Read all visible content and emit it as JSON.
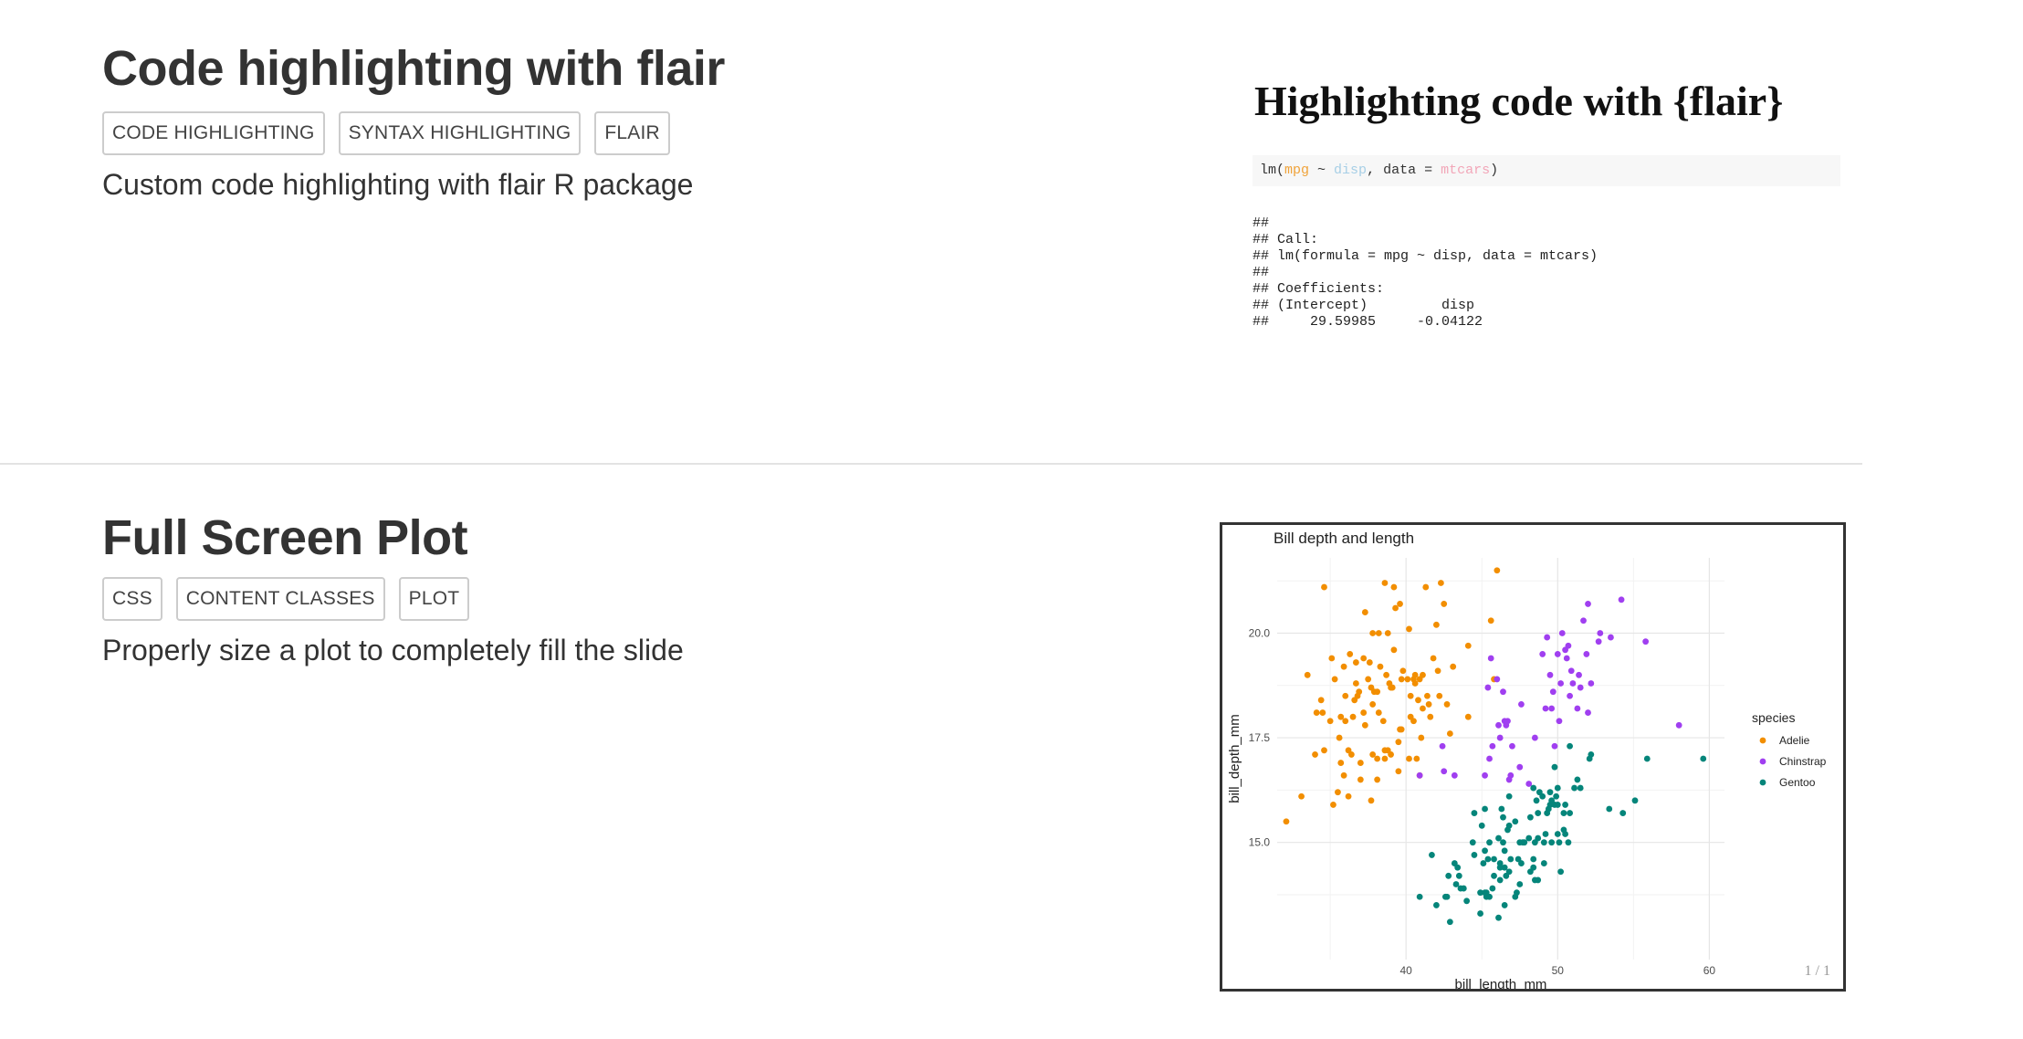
{
  "entries": [
    {
      "title": "Code highlighting with flair",
      "tags": [
        "CODE HIGHLIGHTING",
        "SYNTAX HIGHLIGHTING",
        "FLAIR"
      ],
      "description": "Custom code highlighting with flair R package",
      "preview": {
        "title": "Highlighting code with {flair}",
        "code": {
          "prefix": "lm(",
          "tok1": "mpg",
          "sep1": " ~ ",
          "tok2": "disp",
          "sep2": ", data = ",
          "tok3": "mtcars",
          "suffix": ")"
        },
        "output_lines": [
          "##",
          "## Call:",
          "## lm(formula = mpg ~ disp, data = mtcars)",
          "##",
          "## Coefficients:",
          "## (Intercept)         disp",
          "##     29.59985     -0.04122"
        ]
      }
    },
    {
      "title": "Full Screen Plot",
      "tags": [
        "CSS",
        "CONTENT CLASSES",
        "PLOT"
      ],
      "description": "Properly size a plot to completely fill the slide",
      "preview": {
        "page_number": "1 / 1"
      }
    }
  ],
  "chart_data": {
    "type": "scatter",
    "title": "Bill depth and length",
    "xlabel": "bill_length_mm",
    "ylabel": "bill_depth_mm",
    "xlim": [
      31.5,
      61
    ],
    "ylim": [
      12.2,
      21.8
    ],
    "xticks": [
      40,
      50,
      60
    ],
    "yticks": [
      15.0,
      17.5,
      20.0
    ],
    "grid": true,
    "legend": {
      "title": "species",
      "position": "right"
    },
    "series": [
      {
        "name": "Adelie",
        "color": "#f28e00",
        "points": [
          [
            32.1,
            15.5
          ],
          [
            33.1,
            16.1
          ],
          [
            33.5,
            19.0
          ],
          [
            34.0,
            17.1
          ],
          [
            34.1,
            18.1
          ],
          [
            34.4,
            18.4
          ],
          [
            34.5,
            18.1
          ],
          [
            34.6,
            21.1
          ],
          [
            34.6,
            17.2
          ],
          [
            35.0,
            17.9
          ],
          [
            35.1,
            19.4
          ],
          [
            35.2,
            15.9
          ],
          [
            35.3,
            18.9
          ],
          [
            35.5,
            16.2
          ],
          [
            35.6,
            17.5
          ],
          [
            35.7,
            16.9
          ],
          [
            35.7,
            18.0
          ],
          [
            35.9,
            19.2
          ],
          [
            35.9,
            16.6
          ],
          [
            36.0,
            17.9
          ],
          [
            36.0,
            18.5
          ],
          [
            36.2,
            17.2
          ],
          [
            36.2,
            16.1
          ],
          [
            36.3,
            19.5
          ],
          [
            36.4,
            17.1
          ],
          [
            36.5,
            18.0
          ],
          [
            36.6,
            18.4
          ],
          [
            36.7,
            19.3
          ],
          [
            36.7,
            18.8
          ],
          [
            36.8,
            18.5
          ],
          [
            36.9,
            18.6
          ],
          [
            37.0,
            16.9
          ],
          [
            37.0,
            16.5
          ],
          [
            37.2,
            18.1
          ],
          [
            37.2,
            19.4
          ],
          [
            37.3,
            20.5
          ],
          [
            37.3,
            17.8
          ],
          [
            37.5,
            18.9
          ],
          [
            37.6,
            19.3
          ],
          [
            37.7,
            18.7
          ],
          [
            37.7,
            16.0
          ],
          [
            37.8,
            17.1
          ],
          [
            37.8,
            18.3
          ],
          [
            37.8,
            20.0
          ],
          [
            37.9,
            18.6
          ],
          [
            38.1,
            18.6
          ],
          [
            38.1,
            17.0
          ],
          [
            38.1,
            16.5
          ],
          [
            38.2,
            18.1
          ],
          [
            38.2,
            20.0
          ],
          [
            38.3,
            19.2
          ],
          [
            38.5,
            17.9
          ],
          [
            38.6,
            21.2
          ],
          [
            38.6,
            17.2
          ],
          [
            38.6,
            17.0
          ],
          [
            38.7,
            19.0
          ],
          [
            38.8,
            17.2
          ],
          [
            38.8,
            20.0
          ],
          [
            38.9,
            18.8
          ],
          [
            39.0,
            17.1
          ],
          [
            39.0,
            18.7
          ],
          [
            39.1,
            18.7
          ],
          [
            39.2,
            19.6
          ],
          [
            39.2,
            21.1
          ],
          [
            39.3,
            20.6
          ],
          [
            39.5,
            17.4
          ],
          [
            39.5,
            16.7
          ],
          [
            39.6,
            17.7
          ],
          [
            39.6,
            20.7
          ],
          [
            39.7,
            18.9
          ],
          [
            39.7,
            17.7
          ],
          [
            39.8,
            19.1
          ],
          [
            40.1,
            18.9
          ],
          [
            40.2,
            17.0
          ],
          [
            40.2,
            20.1
          ],
          [
            40.3,
            18.0
          ],
          [
            40.3,
            18.5
          ],
          [
            40.5,
            17.9
          ],
          [
            40.5,
            18.9
          ],
          [
            40.6,
            18.8
          ],
          [
            40.6,
            19.0
          ],
          [
            40.7,
            17.0
          ],
          [
            40.8,
            18.4
          ],
          [
            40.9,
            16.6
          ],
          [
            40.9,
            18.9
          ],
          [
            41.0,
            17.5
          ],
          [
            41.1,
            19.0
          ],
          [
            41.1,
            18.2
          ],
          [
            41.3,
            21.1
          ],
          [
            41.4,
            18.5
          ],
          [
            41.5,
            18.3
          ],
          [
            41.6,
            18.0
          ],
          [
            41.8,
            19.4
          ],
          [
            42.0,
            20.2
          ],
          [
            42.1,
            19.1
          ],
          [
            42.2,
            18.5
          ],
          [
            42.3,
            21.2
          ],
          [
            42.5,
            20.7
          ],
          [
            42.7,
            18.3
          ],
          [
            42.9,
            17.6
          ],
          [
            43.1,
            19.2
          ],
          [
            44.1,
            19.7
          ],
          [
            44.1,
            18.0
          ],
          [
            45.6,
            20.3
          ],
          [
            45.8,
            18.9
          ],
          [
            46.0,
            21.5
          ]
        ]
      },
      {
        "name": "Chinstrap",
        "color": "#a03ff0",
        "points": [
          [
            40.9,
            16.6
          ],
          [
            42.4,
            17.3
          ],
          [
            42.5,
            16.7
          ],
          [
            43.2,
            16.6
          ],
          [
            45.2,
            16.6
          ],
          [
            45.4,
            18.7
          ],
          [
            45.5,
            17.0
          ],
          [
            45.6,
            19.4
          ],
          [
            45.7,
            17.3
          ],
          [
            46.0,
            18.9
          ],
          [
            46.1,
            17.8
          ],
          [
            46.2,
            17.5
          ],
          [
            46.4,
            18.6
          ],
          [
            46.5,
            17.9
          ],
          [
            46.6,
            17.8
          ],
          [
            46.7,
            17.9
          ],
          [
            46.8,
            16.5
          ],
          [
            46.9,
            16.6
          ],
          [
            47.0,
            17.3
          ],
          [
            47.5,
            16.8
          ],
          [
            47.6,
            18.3
          ],
          [
            48.1,
            16.4
          ],
          [
            48.5,
            17.5
          ],
          [
            49.0,
            19.5
          ],
          [
            49.2,
            18.2
          ],
          [
            49.3,
            19.9
          ],
          [
            49.5,
            19.0
          ],
          [
            49.6,
            18.2
          ],
          [
            49.7,
            18.6
          ],
          [
            49.8,
            17.3
          ],
          [
            50.0,
            19.5
          ],
          [
            50.1,
            17.9
          ],
          [
            50.2,
            18.8
          ],
          [
            50.3,
            20.0
          ],
          [
            50.5,
            19.6
          ],
          [
            50.6,
            19.4
          ],
          [
            50.7,
            19.7
          ],
          [
            50.8,
            18.5
          ],
          [
            50.9,
            19.1
          ],
          [
            51.0,
            18.8
          ],
          [
            51.3,
            18.2
          ],
          [
            51.4,
            19.0
          ],
          [
            51.5,
            18.7
          ],
          [
            51.7,
            20.3
          ],
          [
            51.9,
            19.5
          ],
          [
            52.0,
            18.1
          ],
          [
            52.0,
            20.7
          ],
          [
            52.2,
            18.8
          ],
          [
            52.7,
            19.8
          ],
          [
            52.8,
            20.0
          ],
          [
            53.5,
            19.9
          ],
          [
            54.2,
            20.8
          ],
          [
            55.8,
            19.8
          ],
          [
            58.0,
            17.8
          ]
        ]
      },
      {
        "name": "Gentoo",
        "color": "#05857a",
        "points": [
          [
            40.9,
            13.7
          ],
          [
            41.7,
            14.7
          ],
          [
            42.0,
            13.5
          ],
          [
            42.6,
            13.7
          ],
          [
            42.7,
            13.7
          ],
          [
            42.8,
            14.2
          ],
          [
            42.9,
            13.1
          ],
          [
            43.2,
            14.5
          ],
          [
            43.3,
            14.0
          ],
          [
            43.4,
            14.4
          ],
          [
            43.5,
            14.2
          ],
          [
            43.6,
            13.9
          ],
          [
            43.8,
            13.9
          ],
          [
            44.0,
            13.6
          ],
          [
            44.4,
            15.0
          ],
          [
            44.5,
            14.7
          ],
          [
            44.5,
            15.7
          ],
          [
            44.9,
            13.3
          ],
          [
            44.9,
            13.8
          ],
          [
            45.0,
            15.4
          ],
          [
            45.1,
            14.5
          ],
          [
            45.2,
            13.8
          ],
          [
            45.2,
            14.8
          ],
          [
            45.2,
            15.8
          ],
          [
            45.3,
            13.7
          ],
          [
            45.3,
            13.8
          ],
          [
            45.4,
            14.6
          ],
          [
            45.5,
            13.7
          ],
          [
            45.5,
            15.0
          ],
          [
            45.7,
            13.9
          ],
          [
            45.8,
            14.2
          ],
          [
            45.8,
            14.6
          ],
          [
            46.1,
            13.2
          ],
          [
            46.1,
            15.1
          ],
          [
            46.2,
            14.1
          ],
          [
            46.2,
            14.4
          ],
          [
            46.2,
            14.5
          ],
          [
            46.3,
            15.8
          ],
          [
            46.4,
            15.0
          ],
          [
            46.4,
            15.6
          ],
          [
            46.5,
            13.5
          ],
          [
            46.5,
            14.4
          ],
          [
            46.5,
            14.8
          ],
          [
            46.6,
            14.2
          ],
          [
            46.7,
            15.3
          ],
          [
            46.8,
            14.3
          ],
          [
            46.8,
            15.4
          ],
          [
            46.8,
            16.1
          ],
          [
            46.9,
            14.6
          ],
          [
            47.2,
            13.7
          ],
          [
            47.2,
            15.5
          ],
          [
            47.3,
            13.8
          ],
          [
            47.4,
            14.6
          ],
          [
            47.5,
            14.0
          ],
          [
            47.5,
            15.0
          ],
          [
            47.6,
            14.5
          ],
          [
            47.7,
            15.0
          ],
          [
            47.8,
            15.0
          ],
          [
            48.1,
            15.1
          ],
          [
            48.2,
            14.3
          ],
          [
            48.2,
            15.6
          ],
          [
            48.4,
            14.4
          ],
          [
            48.4,
            14.6
          ],
          [
            48.4,
            16.3
          ],
          [
            48.5,
            14.1
          ],
          [
            48.5,
            15.0
          ],
          [
            48.6,
            16.0
          ],
          [
            48.7,
            14.1
          ],
          [
            48.7,
            15.1
          ],
          [
            48.7,
            15.7
          ],
          [
            48.8,
            16.2
          ],
          [
            49.0,
            16.1
          ],
          [
            49.1,
            14.5
          ],
          [
            49.1,
            15.0
          ],
          [
            49.2,
            15.2
          ],
          [
            49.3,
            15.7
          ],
          [
            49.4,
            15.8
          ],
          [
            49.5,
            15.9
          ],
          [
            49.5,
            16.2
          ],
          [
            49.6,
            15.0
          ],
          [
            49.6,
            16.0
          ],
          [
            49.8,
            15.9
          ],
          [
            49.8,
            16.8
          ],
          [
            49.9,
            16.1
          ],
          [
            50.0,
            15.2
          ],
          [
            50.0,
            15.9
          ],
          [
            50.0,
            16.3
          ],
          [
            50.1,
            15.0
          ],
          [
            50.2,
            14.3
          ],
          [
            50.4,
            15.3
          ],
          [
            50.4,
            15.7
          ],
          [
            50.5,
            15.2
          ],
          [
            50.5,
            15.9
          ],
          [
            50.7,
            15.0
          ],
          [
            50.8,
            15.7
          ],
          [
            50.8,
            17.3
          ],
          [
            51.1,
            16.3
          ],
          [
            51.3,
            16.5
          ],
          [
            51.5,
            16.3
          ],
          [
            52.1,
            17.0
          ],
          [
            52.2,
            17.1
          ],
          [
            53.4,
            15.8
          ],
          [
            54.3,
            15.7
          ],
          [
            55.1,
            16.0
          ],
          [
            55.9,
            17.0
          ],
          [
            59.6,
            17.0
          ]
        ]
      }
    ]
  }
}
